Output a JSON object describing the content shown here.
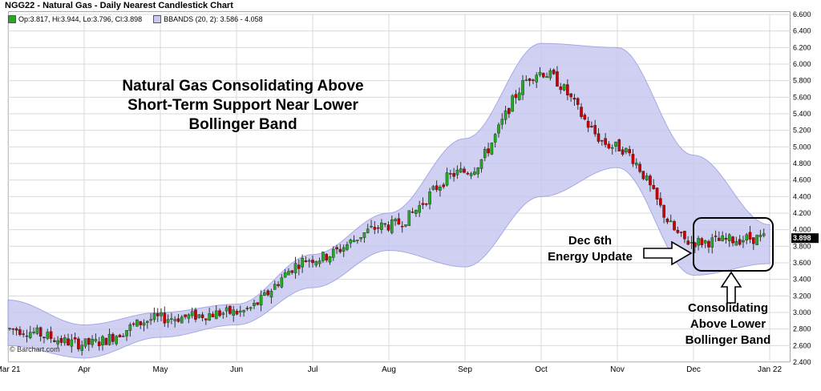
{
  "header": {
    "title": "NGG22 - Natural Gas - Daily Nearest Candlestick Chart",
    "legend_ohlc": "Op:3.817, Hi:3.944, Lo:3.796, Cl:3.898",
    "legend_bbands": "BBANDS (20, 2): 3.586 - 4.058",
    "copyright": "© Barchart.com"
  },
  "annotations": {
    "main_line1": "Natural Gas Consolidating Above",
    "main_line2": "Short-Term Support Near Lower",
    "main_line3": "Bollinger Band",
    "dec6_line1": "Dec 6th",
    "dec6_line2": "Energy Update",
    "consol_line1": "Consolidating",
    "consol_line2": "Above Lower",
    "consol_line3": "Bollinger Band"
  },
  "colors": {
    "up": "#22aa22",
    "down": "#cc0000",
    "band_fill": "#c8c8f0",
    "band_line": "#9a9ae0",
    "grid": "#d9d9d9"
  },
  "chart_data": {
    "type": "candlestick",
    "title": "NGG22 - Natural Gas - Daily Nearest Candlestick Chart",
    "ylim": [
      2.4,
      6.6
    ],
    "y_ticks": [
      "2.400",
      "2.600",
      "2.800",
      "3.000",
      "3.200",
      "3.400",
      "3.600",
      "3.800",
      "4.000",
      "4.200",
      "4.400",
      "4.600",
      "4.800",
      "5.000",
      "5.200",
      "5.400",
      "5.600",
      "5.800",
      "6.000",
      "6.200",
      "6.400",
      "6.600"
    ],
    "x_ticks": [
      "Mar 21",
      "Apr",
      "May",
      "Jun",
      "Jul",
      "Aug",
      "Sep",
      "Oct",
      "Nov",
      "Dec",
      "Jan 22"
    ],
    "last_price": "3.898",
    "series": [
      {
        "name": "Close",
        "x": [
          "Mar 21",
          "Apr",
          "May",
          "Jun",
          "Jul",
          "Aug",
          "Sep",
          "Oct",
          "Nov",
          "Dec",
          "Jan 22"
        ],
        "values": [
          2.8,
          2.62,
          2.93,
          3.0,
          3.65,
          4.05,
          4.7,
          5.9,
          5.0,
          3.85,
          3.9
        ]
      },
      {
        "name": "Upper Band",
        "x": [
          "Mar 21",
          "Apr",
          "May",
          "Jun",
          "Jul",
          "Aug",
          "Sep",
          "Oct",
          "Nov",
          "Dec",
          "Jan 22"
        ],
        "values": [
          3.15,
          2.85,
          3.0,
          3.1,
          3.7,
          4.2,
          5.1,
          6.25,
          6.2,
          4.9,
          4.06
        ]
      },
      {
        "name": "Lower Band",
        "x": [
          "Mar 21",
          "Apr",
          "May",
          "Jun",
          "Jul",
          "Aug",
          "Sep",
          "Oct",
          "Nov",
          "Dec",
          "Jan 22"
        ],
        "values": [
          2.6,
          2.45,
          2.7,
          2.85,
          3.3,
          3.75,
          3.55,
          4.4,
          4.75,
          3.45,
          3.59
        ]
      }
    ],
    "legend": "top-left",
    "grid": true
  }
}
